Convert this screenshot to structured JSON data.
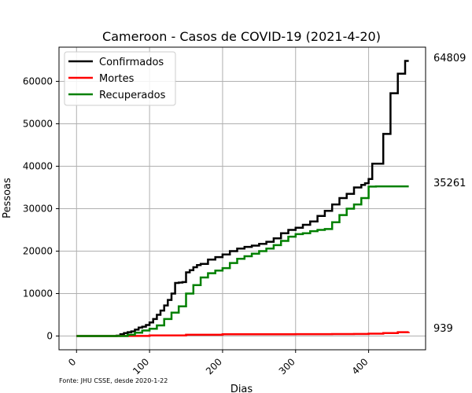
{
  "chart_data": {
    "type": "line",
    "title": "Cameroon - Casos de COVID-19 (2021-4-20)",
    "xlabel": "Dias",
    "ylabel": "Pessoas",
    "source_note": "Fonte: JHU CSSE, desde 2020-1-22",
    "xlim": [
      -24,
      478
    ],
    "ylim": [
      -3240,
      68049
    ],
    "x_ticks": [
      0,
      100,
      200,
      300,
      400
    ],
    "y_ticks": [
      0,
      10000,
      20000,
      30000,
      40000,
      50000,
      60000
    ],
    "x_tick_labels": [
      "0",
      "100",
      "200",
      "300",
      "400"
    ],
    "y_tick_labels": [
      "0",
      "10000",
      "20000",
      "30000",
      "40000",
      "50000",
      "60000"
    ],
    "grid": true,
    "legend_position": "top-left",
    "end_labels": [
      "64809",
      "35261",
      "939"
    ],
    "series": [
      {
        "name": "Confirmados",
        "color": "#000000",
        "x": [
          0,
          50,
          55,
          60,
          65,
          70,
          75,
          80,
          85,
          90,
          95,
          100,
          105,
          110,
          115,
          120,
          125,
          130,
          135,
          140,
          145,
          150,
          155,
          160,
          165,
          170,
          180,
          190,
          200,
          210,
          220,
          230,
          240,
          250,
          260,
          270,
          280,
          290,
          300,
          310,
          320,
          330,
          340,
          350,
          360,
          370,
          380,
          390,
          395,
          400,
          405,
          410,
          415,
          420,
          425,
          430,
          435,
          440,
          445,
          450,
          455
        ],
        "y": [
          0,
          0,
          100,
          400,
          700,
          900,
          1100,
          1500,
          2000,
          2200,
          2600,
          3200,
          4000,
          5000,
          6000,
          7200,
          8500,
          10000,
          12500,
          12600,
          12700,
          15000,
          15500,
          16200,
          16700,
          17000,
          18000,
          18600,
          19200,
          20000,
          20600,
          21000,
          21300,
          21700,
          22200,
          23000,
          24200,
          25000,
          25500,
          26200,
          27000,
          28300,
          29500,
          31000,
          32500,
          33500,
          35000,
          35600,
          36000,
          37000,
          40600,
          40600,
          40600,
          47600,
          47600,
          57200,
          57200,
          61800,
          61800,
          64809,
          64809
        ]
      },
      {
        "name": "Mortes",
        "color": "#ff0000",
        "x": [
          0,
          60,
          100,
          150,
          200,
          250,
          300,
          350,
          380,
          400,
          420,
          440,
          455
        ],
        "y": [
          0,
          10,
          150,
          300,
          400,
          430,
          450,
          470,
          490,
          560,
          700,
          900,
          939
        ]
      },
      {
        "name": "Recuperados",
        "color": "#008000",
        "x": [
          0,
          60,
          70,
          80,
          90,
          100,
          110,
          120,
          130,
          140,
          150,
          160,
          170,
          180,
          190,
          200,
          210,
          220,
          230,
          240,
          250,
          260,
          270,
          280,
          290,
          300,
          310,
          320,
          330,
          340,
          350,
          360,
          370,
          380,
          390,
          400,
          410,
          420,
          430,
          440,
          455
        ],
        "y": [
          0,
          0,
          300,
          800,
          1300,
          1700,
          2500,
          4000,
          5500,
          7000,
          10000,
          12000,
          13800,
          14800,
          15400,
          16000,
          17200,
          18200,
          18800,
          19400,
          20000,
          20600,
          21400,
          22400,
          23400,
          24000,
          24200,
          24700,
          25000,
          25200,
          26800,
          28500,
          30000,
          31000,
          32500,
          35200,
          35261,
          35261,
          35261,
          35261,
          35261
        ]
      }
    ]
  }
}
